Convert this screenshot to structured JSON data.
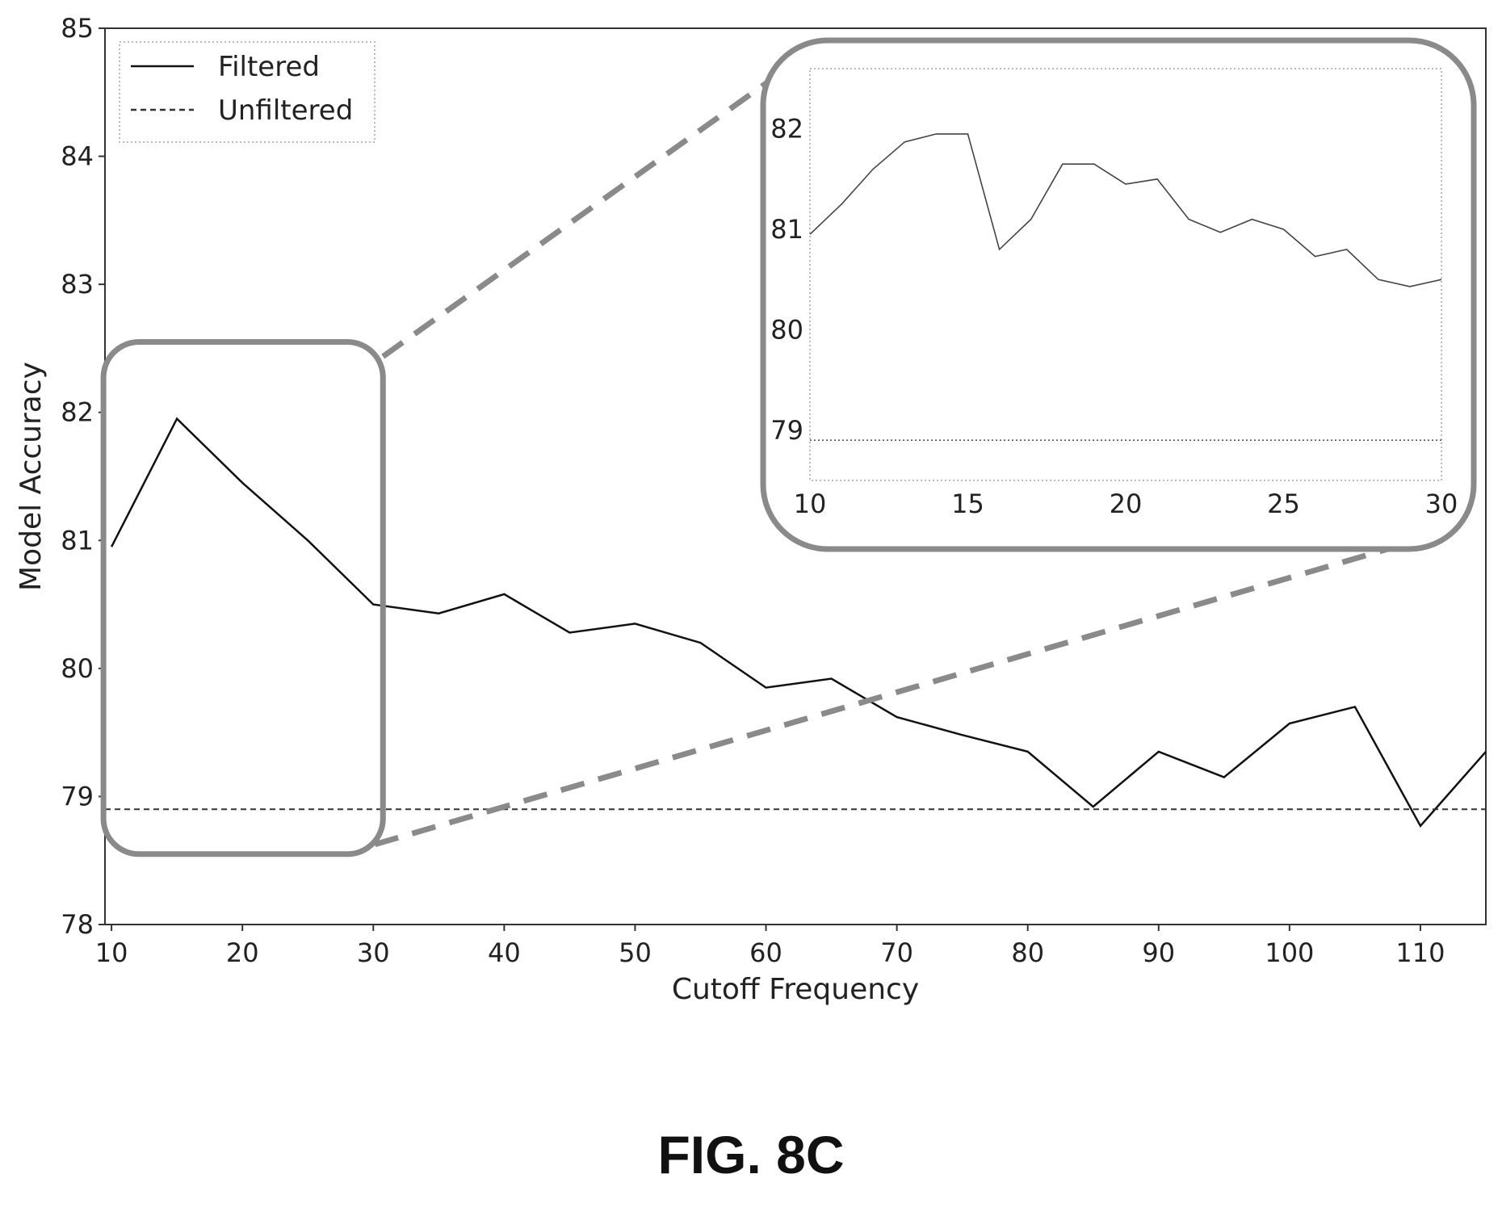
{
  "figure_caption": "FIG. 8C",
  "colors": {
    "filtered": "#111111",
    "unfiltered": "#333333",
    "highlight": "#8a8a8a"
  },
  "chart_data": [
    {
      "type": "line",
      "name": "main",
      "xlabel": "Cutoff Frequency",
      "ylabel": "Model Accuracy",
      "xlim": [
        9.5,
        115
      ],
      "ylim": [
        78,
        85
      ],
      "xticks": [
        10,
        20,
        30,
        40,
        50,
        60,
        70,
        80,
        90,
        100,
        110
      ],
      "yticks": [
        78,
        79,
        80,
        81,
        82,
        83,
        84,
        85
      ],
      "legend": {
        "position": "top-left",
        "entries": [
          "Filtered",
          "Unfiltered"
        ]
      },
      "series": [
        {
          "name": "Filtered",
          "style": "solid",
          "x": [
            10,
            15,
            20,
            25,
            30,
            35,
            40,
            45,
            50,
            55,
            60,
            65,
            70,
            75,
            80,
            85,
            90,
            95,
            100,
            105,
            110,
            115
          ],
          "y": [
            80.95,
            81.95,
            81.45,
            81.0,
            80.5,
            80.43,
            80.58,
            80.28,
            80.35,
            80.2,
            79.85,
            79.92,
            79.62,
            79.48,
            79.35,
            78.92,
            79.35,
            79.15,
            79.57,
            79.7,
            78.77,
            79.35
          ]
        },
        {
          "name": "Unfiltered",
          "style": "dashed",
          "x": [
            9.5,
            115
          ],
          "y": [
            78.9,
            78.9
          ]
        }
      ],
      "zoom_region": {
        "xlim": [
          10,
          30
        ],
        "ylim": [
          78.55,
          82.55
        ]
      }
    },
    {
      "type": "line",
      "name": "inset",
      "xlim": [
        10,
        30
      ],
      "ylim": [
        78.5,
        82.6
      ],
      "xticks": [
        10,
        15,
        20,
        25,
        30
      ],
      "yticks": [
        79,
        80,
        81,
        82
      ],
      "series": [
        {
          "name": "Filtered",
          "style": "solid",
          "x": [
            10,
            11,
            12,
            13,
            14,
            15,
            16,
            17,
            18,
            19,
            20,
            21,
            22,
            23,
            24,
            25,
            26,
            27,
            28,
            29,
            30
          ],
          "y": [
            80.95,
            81.25,
            81.6,
            81.87,
            81.95,
            81.95,
            80.8,
            81.1,
            81.65,
            81.65,
            81.45,
            81.5,
            81.1,
            80.97,
            81.1,
            81.0,
            80.73,
            80.8,
            80.5,
            80.43,
            80.5
          ]
        },
        {
          "name": "Unfiltered",
          "style": "dotted",
          "x": [
            10,
            30
          ],
          "y": [
            78.9,
            78.9
          ]
        }
      ]
    }
  ]
}
